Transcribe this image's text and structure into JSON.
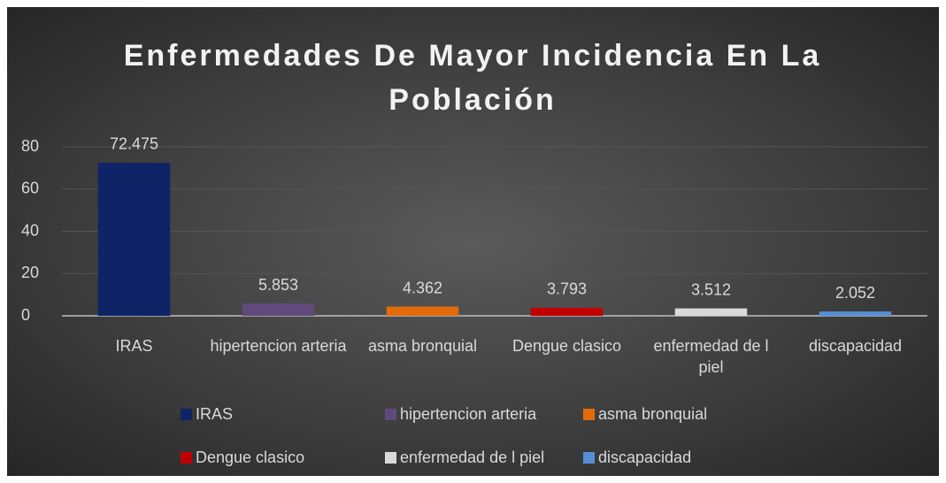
{
  "chart_data": {
    "type": "bar",
    "title": "Enfermedades De Mayor Incidencia En La Población",
    "categories": [
      "IRAS",
      "hipertencion arteria",
      "asma bronquial",
      "Dengue clasico",
      "enfermedad de l piel",
      "discapacidad"
    ],
    "values": [
      72.475,
      5.853,
      4.362,
      3.793,
      3.512,
      2.052
    ],
    "colors": [
      "#0f2466",
      "#604a7b",
      "#e36c0a",
      "#c00000",
      "#d9d9d9",
      "#558ed5"
    ],
    "ylim": [
      0,
      80
    ],
    "yticks": [
      0,
      20,
      40,
      60,
      80
    ],
    "grid": true,
    "legend": "bottom"
  }
}
